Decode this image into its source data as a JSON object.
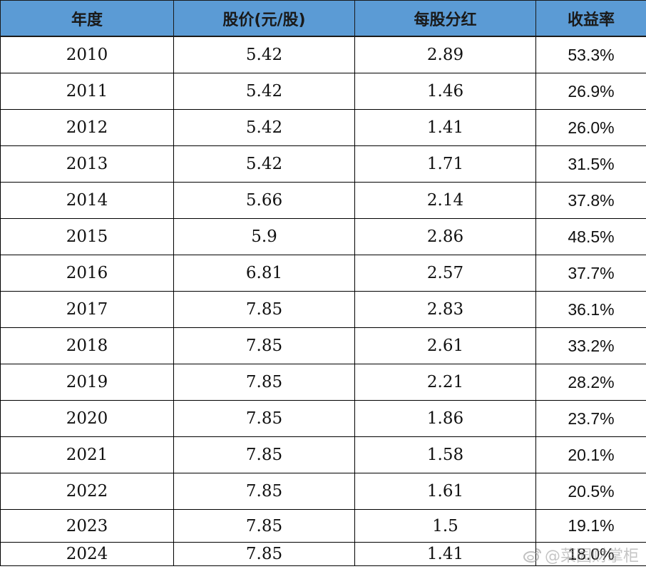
{
  "table": {
    "headers": [
      "年度",
      "股价(元/股)",
      "每股分红",
      "收益率"
    ],
    "rows": [
      [
        "2010",
        "5.42",
        "2.89",
        "53.3%"
      ],
      [
        "2011",
        "5.42",
        "1.46",
        "26.9%"
      ],
      [
        "2012",
        "5.42",
        "1.41",
        "26.0%"
      ],
      [
        "2013",
        "5.42",
        "1.71",
        "31.5%"
      ],
      [
        "2014",
        "5.66",
        "2.14",
        "37.8%"
      ],
      [
        "2015",
        "5.9",
        "2.86",
        "48.5%"
      ],
      [
        "2016",
        "6.81",
        "2.57",
        "37.7%"
      ],
      [
        "2017",
        "7.85",
        "2.83",
        "36.1%"
      ],
      [
        "2018",
        "7.85",
        "2.61",
        "33.2%"
      ],
      [
        "2019",
        "7.85",
        "2.21",
        "28.2%"
      ],
      [
        "2020",
        "7.85",
        "1.86",
        "23.7%"
      ],
      [
        "2021",
        "7.85",
        "1.58",
        "20.1%"
      ],
      [
        "2022",
        "7.85",
        "1.61",
        "20.5%"
      ],
      [
        "2023",
        "7.85",
        "1.5",
        "19.1%"
      ],
      [
        "2024",
        "7.85",
        "1.41",
        "18.0%"
      ]
    ]
  },
  "watermark": {
    "text": "@菜园财掌柜",
    "icon": "weibo-icon"
  },
  "colors": {
    "header_bg": "#5b9bd5",
    "border": "#000000"
  }
}
